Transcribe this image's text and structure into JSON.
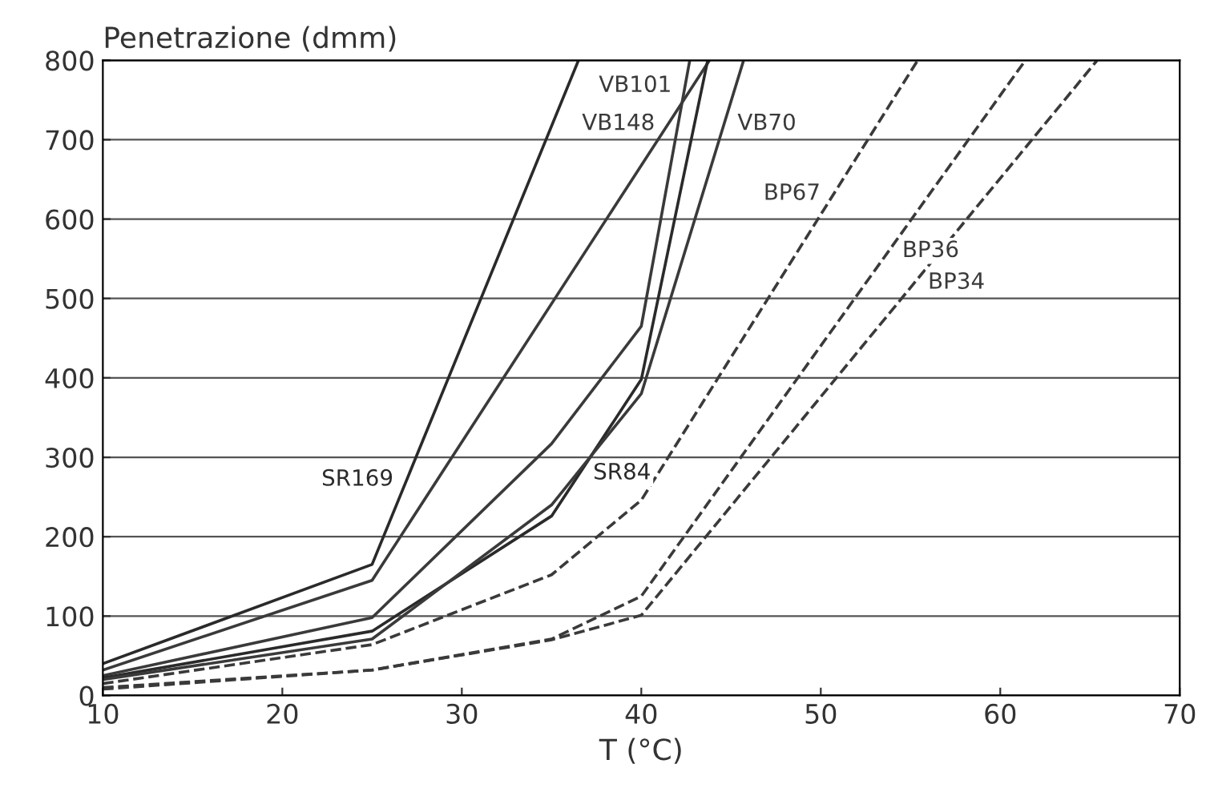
{
  "chart_data": {
    "type": "line",
    "xlabel": "T (°C)",
    "ylabel": "Penetrazione (dmm)",
    "xlim": [
      10,
      70
    ],
    "xticks": [
      10,
      20,
      30,
      40,
      50,
      60,
      70
    ],
    "ylim": [
      0,
      800
    ],
    "yticks": [
      0,
      100,
      200,
      300,
      400,
      500,
      600,
      700,
      800
    ],
    "grid": "y",
    "marker": "none",
    "series": [
      {
        "name": "SR169",
        "color": "#2a2a2a",
        "line_style": "solid",
        "x": [
          10,
          25,
          36.5
        ],
        "values": [
          40,
          165,
          800
        ]
      },
      {
        "name": "VB148",
        "color": "#3a3a3a",
        "line_style": "solid",
        "x": [
          10,
          25,
          43.8
        ],
        "values": [
          32,
          145,
          800
        ]
      },
      {
        "name": "VB101",
        "color": "#3a3a3a",
        "line_style": "solid",
        "x": [
          10,
          25,
          35,
          40,
          42.7
        ],
        "values": [
          25,
          98,
          317,
          465,
          800
        ]
      },
      {
        "name": "SR84",
        "color": "#2a2a2a",
        "line_style": "solid",
        "x": [
          10,
          25,
          35,
          40,
          43.7
        ],
        "values": [
          22,
          81,
          226,
          398,
          800
        ]
      },
      {
        "name": "VB70",
        "color": "#3a3a3a",
        "line_style": "solid",
        "x": [
          10,
          25,
          35,
          40,
          45.7
        ],
        "values": [
          20,
          71,
          240,
          380,
          800
        ]
      },
      {
        "name": "BP67",
        "color": "#3a3a3a",
        "line_style": "dashed",
        "x": [
          10,
          25,
          35,
          40,
          55.4
        ],
        "values": [
          15,
          64,
          152,
          246,
          800
        ]
      },
      {
        "name": "BP36",
        "color": "#3a3a3a",
        "line_style": "dashed",
        "x": [
          10,
          25,
          35,
          40,
          61.4
        ],
        "values": [
          10,
          32,
          71,
          125,
          800
        ]
      },
      {
        "name": "BP34",
        "color": "#3a3a3a",
        "line_style": "dashed",
        "x": [
          10,
          25,
          35,
          40,
          65.4
        ],
        "values": [
          8,
          32,
          70,
          101,
          800
        ]
      }
    ]
  }
}
